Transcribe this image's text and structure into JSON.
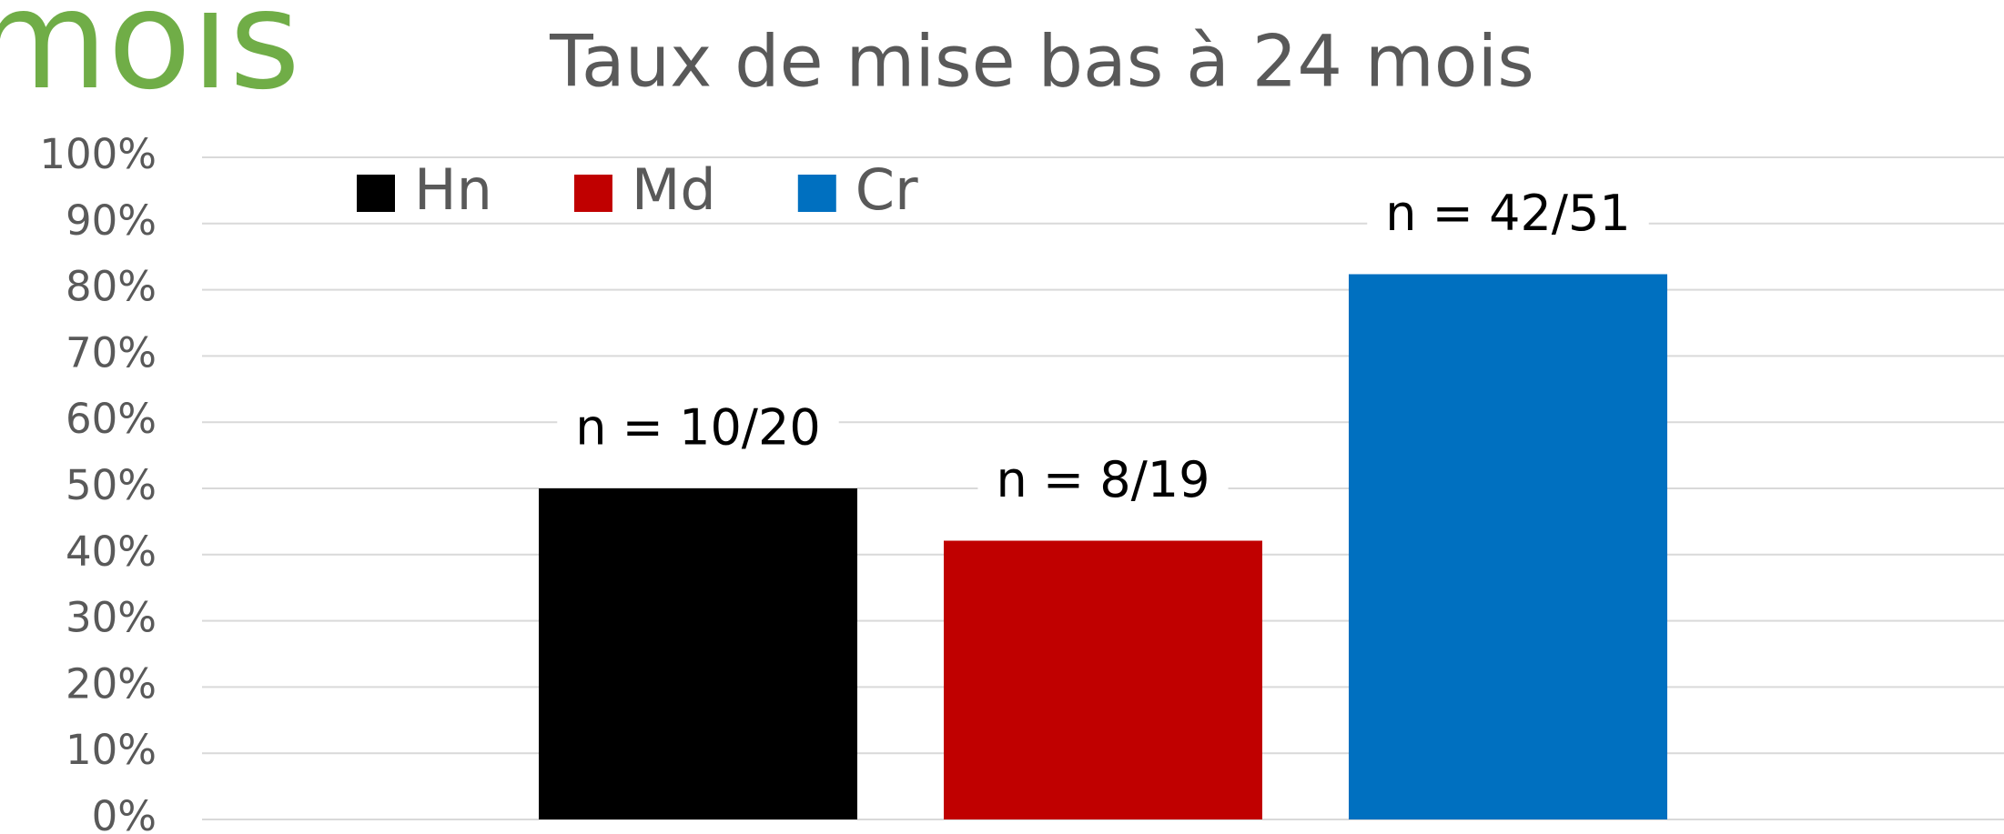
{
  "slide_title": "mois",
  "chart_data": {
    "type": "bar",
    "title": "Taux de mise bas à 24 mois",
    "categories": [
      null
    ],
    "series": [
      {
        "name": "Hn",
        "color": "#000000",
        "values": [
          50
        ],
        "value_labels": [
          "n = 10/20"
        ]
      },
      {
        "name": "Md",
        "color": "#c00000",
        "values": [
          42.1
        ],
        "value_labels": [
          "n = 8/19"
        ]
      },
      {
        "name": "Cr",
        "color": "#0070c0",
        "values": [
          82.35
        ],
        "value_labels": [
          "n = 42/51"
        ]
      }
    ],
    "ylim": [
      0,
      100
    ],
    "yticks": [
      {
        "value": 0,
        "label": "0%"
      },
      {
        "value": 10,
        "label": "10%"
      },
      {
        "value": 20,
        "label": "20%"
      },
      {
        "value": 30,
        "label": "30%"
      },
      {
        "value": 40,
        "label": "40%"
      },
      {
        "value": 50,
        "label": "50%"
      },
      {
        "value": 60,
        "label": "60%"
      },
      {
        "value": 70,
        "label": "70%"
      },
      {
        "value": 80,
        "label": "80%"
      },
      {
        "value": 90,
        "label": "90%"
      },
      {
        "value": 100,
        "label": "100%"
      }
    ],
    "grid": true,
    "legend": "top-left"
  }
}
